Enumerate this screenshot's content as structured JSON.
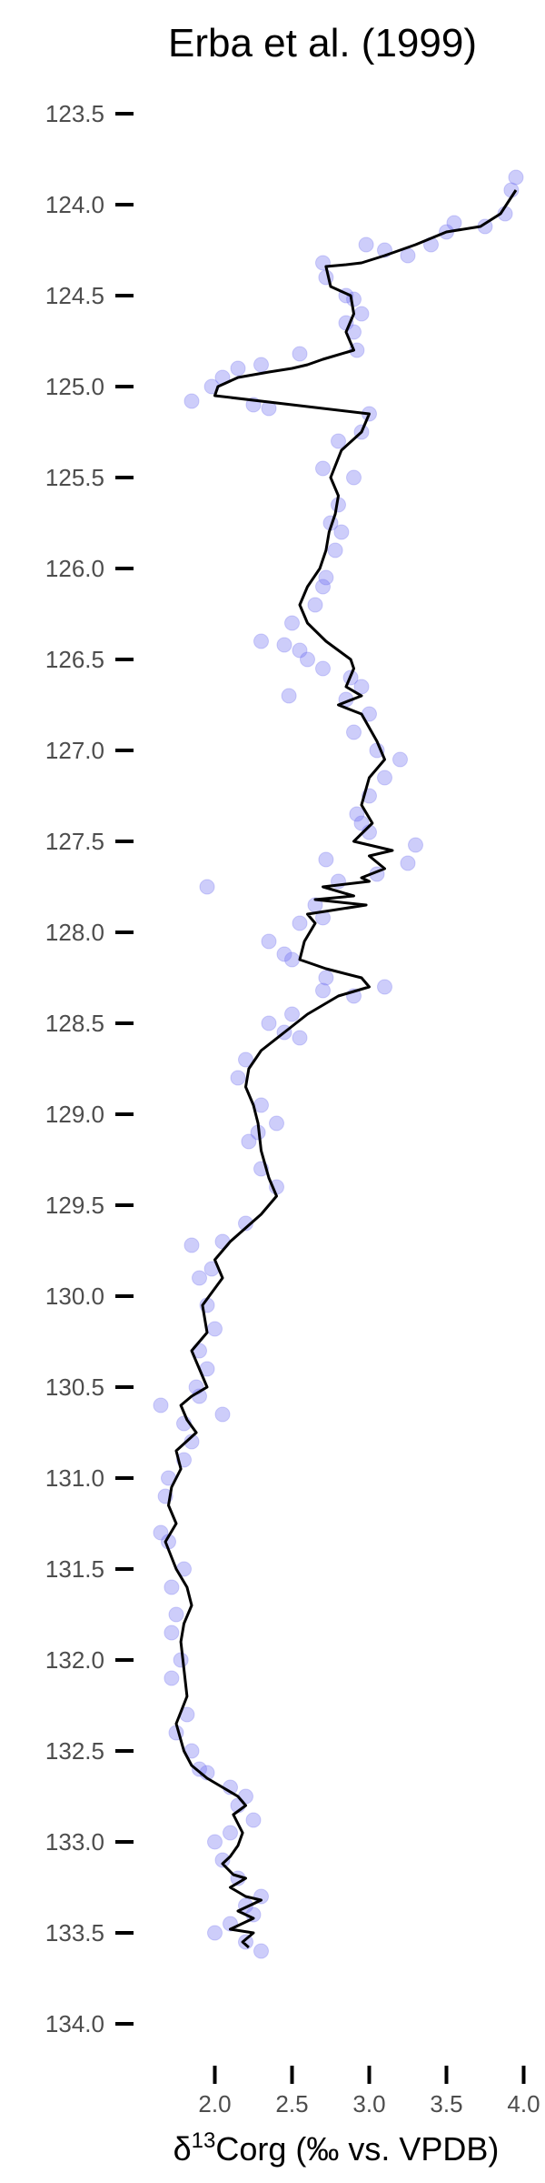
{
  "colors": {
    "points": "#6f6ff0",
    "line": "#000000",
    "text": "#4d4d4d",
    "title": "#000000"
  },
  "chart_data": {
    "type": "scatter",
    "title": "Erba et al. (1999)",
    "xlabel_parts": {
      "prefix": "δ",
      "sup": "13",
      "suffix": "Corg (‰ vs. VPDB)"
    },
    "ylabel": "",
    "xlim": [
      1.55,
      4.05
    ],
    "ylim": [
      123.25,
      134.1
    ],
    "y_reversed": true,
    "grid": false,
    "legend": "none",
    "x_ticks": [
      2.0,
      2.5,
      3.0,
      3.5,
      4.0
    ],
    "x_tick_labels": [
      "2.0",
      "2.5",
      "3.0",
      "3.5",
      "4.0"
    ],
    "y_ticks": [
      123.5,
      124.0,
      124.5,
      125.0,
      125.5,
      126.0,
      126.5,
      127.0,
      127.5,
      128.0,
      128.5,
      129.0,
      129.5,
      130.0,
      130.5,
      131.0,
      131.5,
      132.0,
      132.5,
      133.0,
      133.5,
      134.0
    ],
    "y_tick_labels": [
      "123.5",
      "124.0",
      "124.5",
      "125.0",
      "125.5",
      "126.0",
      "126.5",
      "127.0",
      "127.5",
      "128.0",
      "128.5",
      "129.0",
      "129.5",
      "130.0",
      "130.5",
      "131.0",
      "131.5",
      "132.0",
      "132.5",
      "133.0",
      "133.5",
      "134.0"
    ],
    "series": [
      {
        "kind": "points",
        "x": [
          3.95,
          3.92,
          3.88,
          3.75,
          3.55,
          3.5,
          3.4,
          3.25,
          3.1,
          2.98,
          2.7,
          2.72,
          2.85,
          2.9,
          2.95,
          2.85,
          2.9,
          2.92,
          2.55,
          2.3,
          2.15,
          2.05,
          1.98,
          1.85,
          2.25,
          2.35,
          3.0,
          2.95,
          2.8,
          2.7,
          2.9,
          2.8,
          2.75,
          2.82,
          2.78,
          2.72,
          2.7,
          2.65,
          2.5,
          2.3,
          2.45,
          2.55,
          2.6,
          2.7,
          2.48,
          2.88,
          2.95,
          2.85,
          3.0,
          2.9,
          3.05,
          3.2,
          3.1,
          3.0,
          2.92,
          2.95,
          3.0,
          3.3,
          3.25,
          3.05,
          2.8,
          2.72,
          1.95,
          2.65,
          2.55,
          2.7,
          2.35,
          2.5,
          2.45,
          2.72,
          2.9,
          2.7,
          3.1,
          2.35,
          2.45,
          2.5,
          2.55,
          2.2,
          2.15,
          2.3,
          2.28,
          2.4,
          2.22,
          2.3,
          2.4,
          2.2,
          1.85,
          2.05,
          1.98,
          1.9,
          1.95,
          2.0,
          1.9,
          1.95,
          1.88,
          1.65,
          1.9,
          2.05,
          1.8,
          1.85,
          1.8,
          1.7,
          1.68,
          1.65,
          1.7,
          1.8,
          1.72,
          1.75,
          1.72,
          1.78,
          1.72,
          1.82,
          1.75,
          1.85,
          1.9,
          1.95,
          2.1,
          2.2,
          2.15,
          2.25,
          2.1,
          2.0,
          2.05,
          2.15,
          2.3,
          2.2,
          2.25,
          2.1,
          2.0,
          2.2,
          2.3
        ],
        "y": [
          123.85,
          123.92,
          124.05,
          124.12,
          124.1,
          124.15,
          124.22,
          124.28,
          124.25,
          124.22,
          124.32,
          124.4,
          124.5,
          124.52,
          124.6,
          124.65,
          124.7,
          124.8,
          124.82,
          124.88,
          124.9,
          124.95,
          125.0,
          125.08,
          125.1,
          125.12,
          125.15,
          125.25,
          125.3,
          125.45,
          125.5,
          125.65,
          125.75,
          125.8,
          125.9,
          126.05,
          126.1,
          126.2,
          126.3,
          126.4,
          126.42,
          126.45,
          126.5,
          126.55,
          126.7,
          126.6,
          126.65,
          126.72,
          126.8,
          126.9,
          127.0,
          127.05,
          127.15,
          127.25,
          127.35,
          127.4,
          127.45,
          127.52,
          127.62,
          127.68,
          127.72,
          127.6,
          127.75,
          127.85,
          127.95,
          127.92,
          128.05,
          128.15,
          128.12,
          128.25,
          128.35,
          128.32,
          128.3,
          128.5,
          128.55,
          128.45,
          128.58,
          128.7,
          128.8,
          128.95,
          129.1,
          129.05,
          129.15,
          129.3,
          129.4,
          129.6,
          129.72,
          129.7,
          129.85,
          129.9,
          130.05,
          130.18,
          130.3,
          130.4,
          130.5,
          130.6,
          130.55,
          130.65,
          130.7,
          130.8,
          130.9,
          131.0,
          131.1,
          131.3,
          131.35,
          131.5,
          131.6,
          131.75,
          131.85,
          132.0,
          132.1,
          132.3,
          132.4,
          132.5,
          132.6,
          132.62,
          132.7,
          132.75,
          132.8,
          132.88,
          132.95,
          133.0,
          133.1,
          133.2,
          133.3,
          133.35,
          133.4,
          133.45,
          133.5,
          133.55,
          133.6
        ]
      },
      {
        "kind": "line",
        "x": [
          3.95,
          3.85,
          3.72,
          3.5,
          3.3,
          3.1,
          2.95,
          2.85,
          2.72,
          2.75,
          2.88,
          2.9,
          2.85,
          2.9,
          2.7,
          2.6,
          2.5,
          2.35,
          2.15,
          2.02,
          2.0,
          2.5,
          3.0,
          2.95,
          2.82,
          2.75,
          2.8,
          2.78,
          2.74,
          2.72,
          2.68,
          2.6,
          2.55,
          2.6,
          2.72,
          2.8,
          2.88,
          2.9,
          2.85,
          2.95,
          2.8,
          2.95,
          3.05,
          3.1,
          3.0,
          2.95,
          3.02,
          2.9,
          3.15,
          3.0,
          3.1,
          2.95,
          3.0,
          2.7,
          2.9,
          2.65,
          2.98,
          2.6,
          2.65,
          2.58,
          2.55,
          2.72,
          2.95,
          3.0,
          2.8,
          2.6,
          2.45,
          2.3,
          2.22,
          2.2,
          2.25,
          2.28,
          2.3,
          2.35,
          2.4,
          2.3,
          2.1,
          2.0,
          2.05,
          1.92,
          1.95,
          1.85,
          1.9,
          1.95,
          1.85,
          1.78,
          1.82,
          1.88,
          1.75,
          1.78,
          1.72,
          1.7,
          1.75,
          1.68,
          1.75,
          1.82,
          1.85,
          1.8,
          1.78,
          1.8,
          1.82,
          1.75,
          1.8,
          1.85,
          1.95,
          2.05,
          2.15,
          2.2,
          2.12,
          2.18,
          2.15,
          2.1,
          2.05,
          2.12,
          2.2,
          2.1,
          2.2,
          2.3,
          2.15,
          2.25,
          2.1,
          2.25,
          2.18,
          2.22
        ],
        "y": [
          123.92,
          124.05,
          124.12,
          124.15,
          124.22,
          124.28,
          124.32,
          124.33,
          124.34,
          124.45,
          124.5,
          124.6,
          124.7,
          124.8,
          124.85,
          124.88,
          124.9,
          124.92,
          124.95,
          125.0,
          125.05,
          125.1,
          125.15,
          125.25,
          125.35,
          125.5,
          125.6,
          125.7,
          125.8,
          125.9,
          126.0,
          126.1,
          126.2,
          126.3,
          126.4,
          126.45,
          126.5,
          126.55,
          126.65,
          126.7,
          126.75,
          126.8,
          126.95,
          127.05,
          127.15,
          127.3,
          127.4,
          127.5,
          127.55,
          127.58,
          127.65,
          127.7,
          127.72,
          127.75,
          127.8,
          127.82,
          127.85,
          127.9,
          127.95,
          128.05,
          128.15,
          128.2,
          128.25,
          128.3,
          128.35,
          128.45,
          128.55,
          128.65,
          128.75,
          128.85,
          128.95,
          129.05,
          129.2,
          129.35,
          129.45,
          129.55,
          129.7,
          129.8,
          129.9,
          130.05,
          130.2,
          130.3,
          130.4,
          130.5,
          130.55,
          130.6,
          130.68,
          130.75,
          130.85,
          130.95,
          131.05,
          131.15,
          131.25,
          131.35,
          131.5,
          131.6,
          131.7,
          131.8,
          131.9,
          132.05,
          132.2,
          132.35,
          132.5,
          132.58,
          132.65,
          132.7,
          132.75,
          132.8,
          132.85,
          132.95,
          133.02,
          133.08,
          133.12,
          133.18,
          133.2,
          133.25,
          133.3,
          133.32,
          133.38,
          133.42,
          133.48,
          133.5,
          133.55,
          133.58
        ]
      }
    ]
  }
}
